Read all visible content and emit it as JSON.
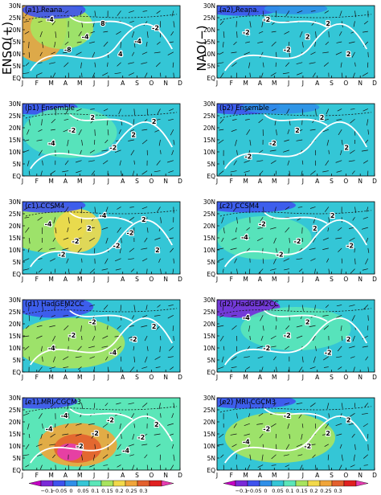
{
  "row_labels": {
    "left": "ENSO(+)",
    "right": "NAO(−)"
  },
  "month_ticks": [
    "J",
    "F",
    "M",
    "A",
    "M",
    "J",
    "J",
    "A",
    "S",
    "O",
    "N",
    "D"
  ],
  "lat_ticks": [
    "30N",
    "25N",
    "20N",
    "15N",
    "10N",
    "5N",
    "EQ"
  ],
  "chart_data": [
    {
      "type": "heatmap",
      "panel": "a1",
      "title": "(a1) Reana.",
      "contour_labels": [
        "-4",
        "-8",
        "-4",
        "8",
        "4",
        "-4",
        "-2"
      ]
    },
    {
      "type": "heatmap",
      "panel": "a2",
      "title": "(a2) Reana.",
      "contour_labels": [
        "-2",
        "-2",
        "-2",
        "2",
        "2",
        "2"
      ]
    },
    {
      "type": "heatmap",
      "panel": "b1",
      "title": "(b1) Ensemble",
      "contour_labels": [
        "-4",
        "-2",
        "2",
        "-2",
        "2",
        "2"
      ]
    },
    {
      "type": "heatmap",
      "panel": "b2",
      "title": "(b2) Ensemble",
      "contour_labels": [
        "-2",
        "-2",
        "2",
        "2",
        "2"
      ]
    },
    {
      "type": "heatmap",
      "panel": "c1",
      "title": "(c1) CCSM4",
      "contour_labels": [
        "-4",
        "-2",
        "-2",
        "2",
        "-4",
        "-2",
        "-2",
        "2",
        "2"
      ]
    },
    {
      "type": "heatmap",
      "panel": "c2",
      "title": "(c2) CCSM4",
      "contour_labels": [
        "-4",
        "-2",
        "-2",
        "-2",
        "2",
        "2",
        "-2"
      ]
    },
    {
      "type": "heatmap",
      "panel": "d1",
      "title": "(d1) HadGEM2CC",
      "contour_labels": [
        "-4",
        "-2",
        "-2",
        "-4",
        "-2",
        "2"
      ]
    },
    {
      "type": "heatmap",
      "panel": "d2",
      "title": "(d2) HadGEM2CC",
      "contour_labels": [
        "-4",
        "-2",
        "-2",
        "2",
        "-2",
        "2"
      ]
    },
    {
      "type": "heatmap",
      "panel": "e1",
      "title": "(e1) MRI-CGCM3",
      "contour_labels": [
        "-4",
        "-4",
        "-2",
        "-2",
        "-2",
        "-4",
        "-2",
        "2"
      ]
    },
    {
      "type": "heatmap",
      "panel": "e2",
      "title": "(e2) MRI-CGCM3",
      "contour_labels": [
        "-4",
        "-2",
        "-2",
        "-2",
        "2",
        "2"
      ]
    }
  ],
  "colorbar": {
    "ticks": [
      "−0.1",
      "−0.05",
      "0",
      "0.05",
      "0.1",
      "0.15",
      "0.2",
      "0.25",
      "0.3"
    ],
    "colors": [
      "#c400c4",
      "#7a2ad8",
      "#3e52ee",
      "#2f8fe8",
      "#34c6d6",
      "#5be6b8",
      "#a8e45e",
      "#f2d94a",
      "#f0a53a",
      "#e3602e",
      "#e02020",
      "#e63cb0"
    ]
  }
}
